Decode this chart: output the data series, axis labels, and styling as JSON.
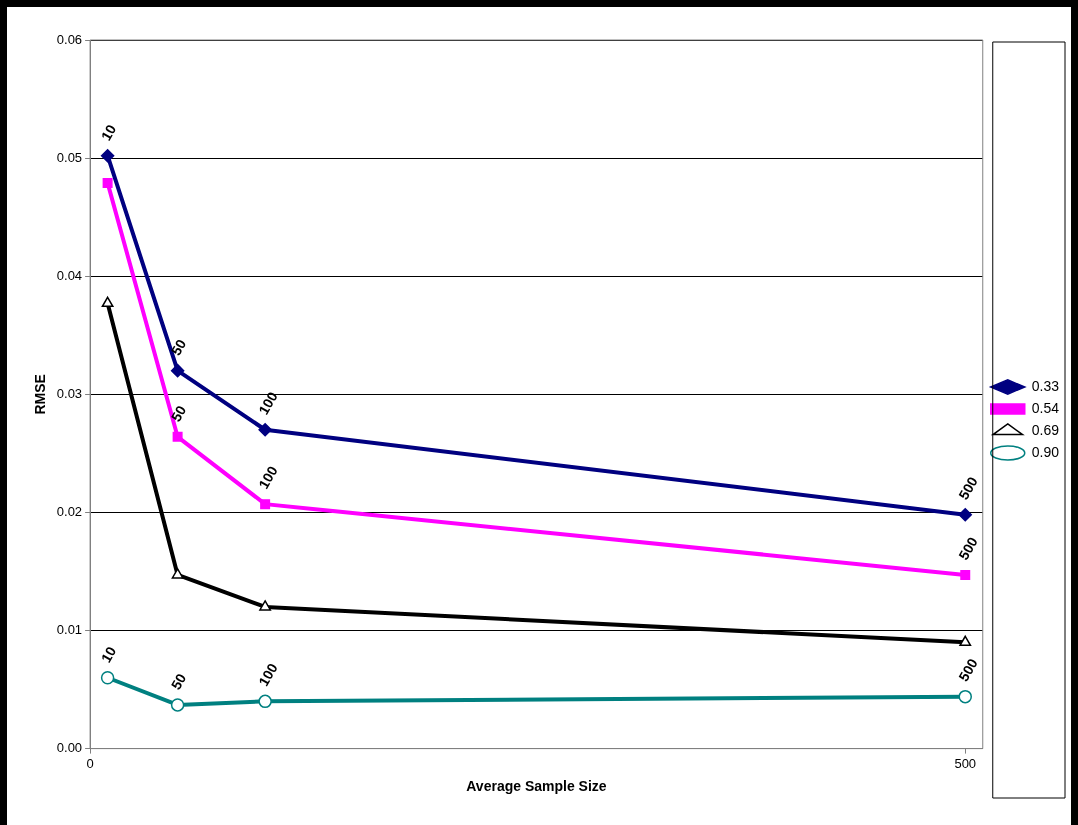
{
  "chart_data": {
    "type": "line",
    "xlabel": "Average Sample Size",
    "ylabel": "RMSE",
    "x": [
      10,
      50,
      100,
      500
    ],
    "series": [
      {
        "name": "0.33",
        "color": "#000080",
        "marker": "diamond",
        "values": [
          0.0502,
          0.032,
          0.027,
          0.0198
        ]
      },
      {
        "name": "0.54",
        "color": "#ff00ff",
        "marker": "square",
        "values": [
          0.0479,
          0.0264,
          0.0207,
          0.0147
        ]
      },
      {
        "name": "0.69",
        "color": "#000000",
        "marker": "triangle",
        "values": [
          0.0377,
          0.0147,
          0.012,
          0.009
        ]
      },
      {
        "name": "0.90",
        "color": "#008080",
        "marker": "circle",
        "values": [
          0.006,
          0.0037,
          0.004,
          0.0044
        ]
      }
    ],
    "xlim": [
      0,
      510
    ],
    "xticks": [
      0,
      500
    ],
    "ylim": [
      0,
      0.06
    ],
    "yticks": [
      {
        "value": 0,
        "label": "0.00"
      },
      {
        "value": 0.01,
        "label": "0.01"
      },
      {
        "value": 0.02,
        "label": "0.02"
      },
      {
        "value": 0.03,
        "label": "0.03"
      },
      {
        "value": 0.04,
        "label": "0.04"
      },
      {
        "value": 0.05,
        "label": "0.05"
      },
      {
        "value": 0.06,
        "label": "0.06"
      }
    ],
    "grid": "y",
    "legend": "right",
    "line_style": "solid",
    "annotations": [
      {
        "text": "10",
        "x": 10,
        "y": 0.0502
      },
      {
        "text": "50",
        "x": 50,
        "y": 0.032
      },
      {
        "text": "100",
        "x": 100,
        "y": 0.027
      },
      {
        "text": "500",
        "x": 500,
        "y": 0.0198
      },
      {
        "text": "50",
        "x": 50,
        "y": 0.0264
      },
      {
        "text": "100",
        "x": 100,
        "y": 0.0207
      },
      {
        "text": "500",
        "x": 500,
        "y": 0.0147
      },
      {
        "text": "10",
        "x": 10,
        "y": 0.006
      },
      {
        "text": "50",
        "x": 50,
        "y": 0.0037
      },
      {
        "text": "100",
        "x": 100,
        "y": 0.004
      },
      {
        "text": "500",
        "x": 500,
        "y": 0.0044
      }
    ]
  }
}
